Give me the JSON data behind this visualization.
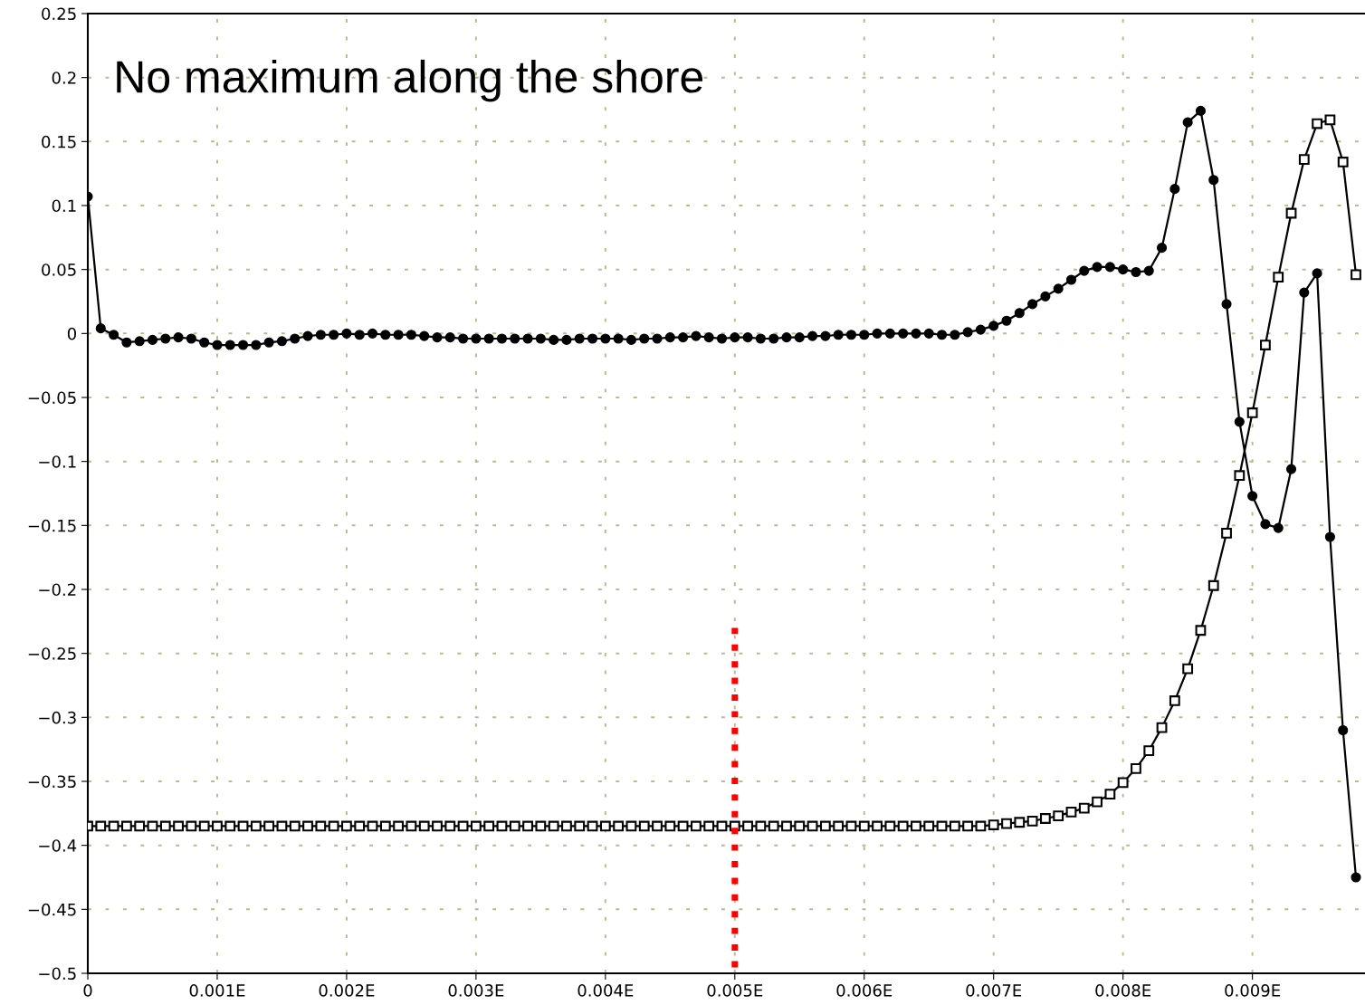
{
  "chart_data": {
    "type": "line",
    "annotations": [
      "No maximum along the shore"
    ],
    "x": [
      0,
      0.0001,
      0.0002,
      0.0003,
      0.0004,
      0.0005,
      0.0006,
      0.0007,
      0.0008,
      0.0009,
      0.001,
      0.0011,
      0.0012,
      0.0013,
      0.0014,
      0.0015,
      0.0016,
      0.0017,
      0.0018,
      0.0019,
      0.002,
      0.0021,
      0.0022,
      0.0023,
      0.0024,
      0.0025,
      0.0026,
      0.0027,
      0.0028,
      0.0029,
      0.003,
      0.0031,
      0.0032,
      0.0033,
      0.0034,
      0.0035,
      0.0036,
      0.0037,
      0.0038,
      0.0039,
      0.004,
      0.0041,
      0.0042,
      0.0043,
      0.0044,
      0.0045,
      0.0046,
      0.0047,
      0.0048,
      0.0049,
      0.005,
      0.0051,
      0.0052,
      0.0053,
      0.0054,
      0.0055,
      0.0056,
      0.0057,
      0.0058,
      0.0059,
      0.006,
      0.0061,
      0.0062,
      0.0063,
      0.0064,
      0.0065,
      0.0066,
      0.0067,
      0.0068,
      0.0069,
      0.007,
      0.0071,
      0.0072,
      0.0073,
      0.0074,
      0.0075,
      0.0076,
      0.0077,
      0.0078,
      0.0079,
      0.008,
      0.0081,
      0.0082,
      0.0083,
      0.0084,
      0.0085,
      0.0086,
      0.0087,
      0.0088,
      0.0089,
      0.009,
      0.0091,
      0.0092,
      0.0093,
      0.0094,
      0.0095,
      0.0096,
      0.0097,
      0.0098
    ],
    "series": [
      {
        "color": "#000000",
        "marker": "circle",
        "values": [
          0.107,
          0.004,
          -0.001,
          -0.007,
          -0.006,
          -0.005,
          -0.004,
          -0.003,
          -0.004,
          -0.007,
          -0.009,
          -0.009,
          -0.009,
          -0.009,
          -0.007,
          -0.006,
          -0.004,
          -0.002,
          -0.001,
          -0.001,
          0,
          -0.001,
          0,
          -0.001,
          -0.001,
          -0.001,
          -0.002,
          -0.003,
          -0.003,
          -0.004,
          -0.004,
          -0.004,
          -0.004,
          -0.004,
          -0.004,
          -0.004,
          -0.005,
          -0.005,
          -0.004,
          -0.004,
          -0.004,
          -0.004,
          -0.005,
          -0.004,
          -0.004,
          -0.003,
          -0.003,
          -0.002,
          -0.003,
          -0.004,
          -0.003,
          -0.003,
          -0.004,
          -0.004,
          -0.003,
          -0.003,
          -0.002,
          -0.002,
          -0.001,
          -0.001,
          -0.001,
          0,
          0,
          0,
          0,
          0,
          -0.001,
          -0.001,
          0.001,
          0.003,
          0.006,
          0.01,
          0.016,
          0.023,
          0.029,
          0.035,
          0.042,
          0.049,
          0.052,
          0.052,
          0.05,
          0.048,
          0.049,
          0.067,
          0.113,
          0.165,
          0.174,
          0.12,
          0.023,
          -0.069,
          -0.127,
          -0.149,
          -0.152,
          -0.106,
          0.032,
          0.047,
          -0.159,
          -0.31,
          -0.425
        ]
      },
      {
        "color": "#000000",
        "marker": "square",
        "values": [
          -0.385,
          -0.385,
          -0.385,
          -0.385,
          -0.385,
          -0.385,
          -0.385,
          -0.385,
          -0.385,
          -0.385,
          -0.385,
          -0.385,
          -0.385,
          -0.385,
          -0.385,
          -0.385,
          -0.385,
          -0.385,
          -0.385,
          -0.385,
          -0.385,
          -0.385,
          -0.385,
          -0.385,
          -0.385,
          -0.385,
          -0.385,
          -0.385,
          -0.385,
          -0.385,
          -0.385,
          -0.385,
          -0.385,
          -0.385,
          -0.385,
          -0.385,
          -0.385,
          -0.385,
          -0.385,
          -0.385,
          -0.385,
          -0.385,
          -0.385,
          -0.385,
          -0.385,
          -0.385,
          -0.385,
          -0.385,
          -0.385,
          -0.385,
          -0.385,
          -0.385,
          -0.385,
          -0.385,
          -0.385,
          -0.385,
          -0.385,
          -0.385,
          -0.385,
          -0.385,
          -0.385,
          -0.385,
          -0.385,
          -0.385,
          -0.385,
          -0.385,
          -0.385,
          -0.385,
          -0.385,
          -0.385,
          -0.384,
          -0.383,
          -0.382,
          -0.381,
          -0.379,
          -0.377,
          -0.374,
          -0.371,
          -0.366,
          -0.36,
          -0.351,
          -0.34,
          -0.326,
          -0.308,
          -0.287,
          -0.262,
          -0.232,
          -0.197,
          -0.156,
          -0.111,
          -0.062,
          -0.009,
          0.044,
          0.094,
          0.136,
          0.164,
          0.167,
          0.134,
          0.046
        ]
      },
      {
        "type": "line",
        "color": "#ff0000",
        "marker": "none",
        "line_style": "dotted",
        "x": [
          0.005,
          0.005
        ],
        "values": [
          -0.23,
          -0.5
        ]
      }
    ],
    "xlim": [
      0,
      0.00987
    ],
    "xticks": [
      0,
      {
        "value": 0.001,
        "label": "0.001E"
      },
      {
        "value": 0.002,
        "label": "0.002E"
      },
      {
        "value": 0.003,
        "label": "0.003E"
      },
      {
        "value": 0.004,
        "label": "0.004E"
      },
      {
        "value": 0.005,
        "label": "0.005E"
      },
      {
        "value": 0.006,
        "label": "0.006E"
      },
      {
        "value": 0.007,
        "label": "0.007E"
      },
      {
        "value": 0.008,
        "label": "0.008E"
      },
      {
        "value": 0.009,
        "label": "0.009E"
      }
    ],
    "ylim": [
      -0.5,
      0.25
    ],
    "yticks": [
      0.25,
      0.2,
      0.15,
      0.1,
      0.05,
      0,
      {
        "value": -0.05,
        "label": "−0.05"
      },
      {
        "value": -0.1,
        "label": "−0.1"
      },
      {
        "value": -0.15,
        "label": "−0.15"
      },
      {
        "value": -0.2,
        "label": "−0.2"
      },
      {
        "value": -0.25,
        "label": "−0.25"
      },
      {
        "value": -0.3,
        "label": "−0.3"
      },
      {
        "value": -0.35,
        "label": "−0.35"
      },
      {
        "value": -0.4,
        "label": "−0.4"
      },
      {
        "value": -0.45,
        "label": "−0.45"
      },
      {
        "value": -0.5,
        "label": "−0.5"
      }
    ],
    "grid": true,
    "line_style": "solid"
  }
}
